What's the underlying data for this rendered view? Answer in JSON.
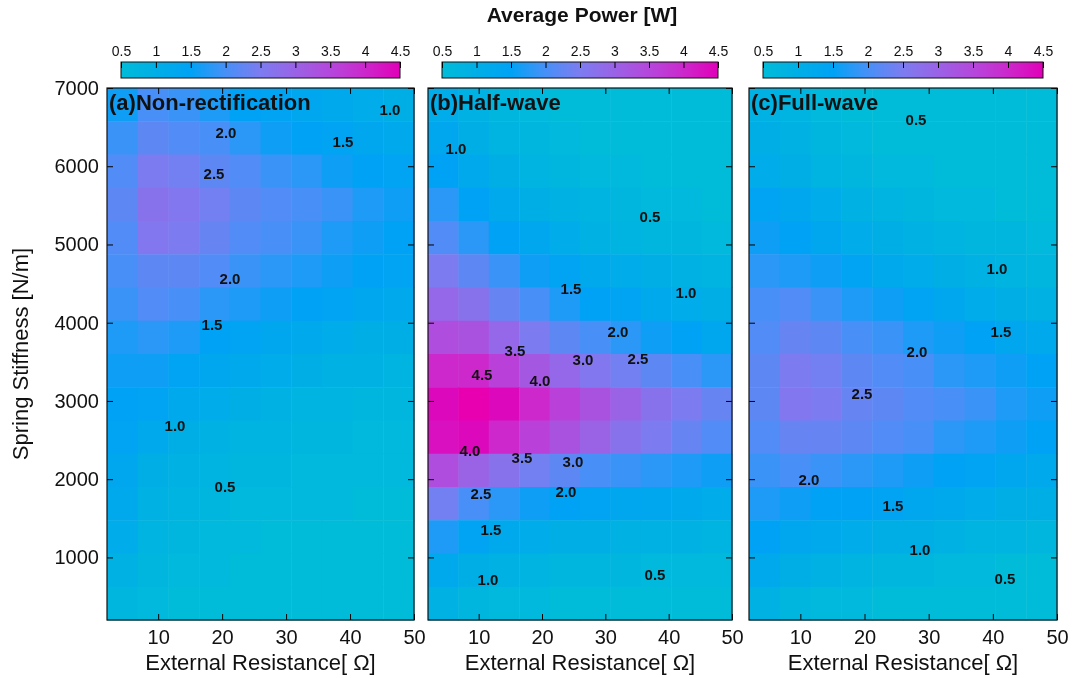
{
  "chart_data": [
    {
      "type": "heatmap",
      "title": "(a)Non-rectification",
      "xlabel": "External Resistance[   Ω]",
      "ylabel": "Spring Stiffness [N/m]",
      "clabel": "Average Power  [W]",
      "xlim": [
        2,
        50
      ],
      "xticks": [
        10,
        20,
        30,
        40,
        50
      ],
      "ylim": [
        200,
        7000
      ],
      "yticks": [
        1000,
        2000,
        3000,
        4000,
        5000,
        6000,
        7000
      ],
      "clim": [
        0.5,
        4.5
      ],
      "cticks": [
        0.5,
        1,
        1.5,
        2,
        2.5,
        3,
        3.5,
        4,
        4.5
      ],
      "cells": [
        [
          1.6,
          2.0,
          1.9,
          1.7,
          1.5,
          1.4,
          1.3,
          1.2,
          1.1,
          1.0
        ],
        [
          1.9,
          2.2,
          2.1,
          2.0,
          1.8,
          1.6,
          1.5,
          1.4,
          1.3,
          1.2
        ],
        [
          2.1,
          2.5,
          2.4,
          2.2,
          2.1,
          1.9,
          1.8,
          1.6,
          1.5,
          1.4
        ],
        [
          2.2,
          2.7,
          2.6,
          2.4,
          2.2,
          2.1,
          2.0,
          1.9,
          1.7,
          1.6
        ],
        [
          2.1,
          2.6,
          2.5,
          2.3,
          2.1,
          2.0,
          1.9,
          1.7,
          1.6,
          1.5
        ],
        [
          2.0,
          2.2,
          2.2,
          2.1,
          1.9,
          1.8,
          1.7,
          1.6,
          1.5,
          1.4
        ],
        [
          1.9,
          2.1,
          2.0,
          1.8,
          1.7,
          1.6,
          1.5,
          1.4,
          1.3,
          1.2
        ],
        [
          1.7,
          1.8,
          1.7,
          1.5,
          1.4,
          1.3,
          1.2,
          1.1,
          1.0,
          1.0
        ],
        [
          1.6,
          1.6,
          1.4,
          1.3,
          1.2,
          1.1,
          1.0,
          0.9,
          0.9,
          0.8
        ],
        [
          1.5,
          1.4,
          1.2,
          1.1,
          1.0,
          0.9,
          0.8,
          0.8,
          0.7,
          0.7
        ],
        [
          1.4,
          1.2,
          1.0,
          0.9,
          0.8,
          0.8,
          0.7,
          0.7,
          0.6,
          0.6
        ],
        [
          1.3,
          1.0,
          0.9,
          0.8,
          0.7,
          0.7,
          0.6,
          0.6,
          0.6,
          0.6
        ],
        [
          1.2,
          0.9,
          0.8,
          0.7,
          0.6,
          0.6,
          0.6,
          0.6,
          0.5,
          0.5
        ],
        [
          1.1,
          0.8,
          0.7,
          0.6,
          0.6,
          0.5,
          0.5,
          0.5,
          0.5,
          0.5
        ],
        [
          0.9,
          0.7,
          0.6,
          0.6,
          0.5,
          0.5,
          0.5,
          0.5,
          0.5,
          0.5
        ],
        [
          0.7,
          0.6,
          0.5,
          0.5,
          0.5,
          0.5,
          0.5,
          0.5,
          0.5,
          0.5
        ]
      ],
      "annotations": [
        "1.0",
        "2.0",
        "1.5",
        "2.5",
        "2.0",
        "1.5",
        "1.0",
        "0.5"
      ]
    },
    {
      "type": "heatmap",
      "title": "(b)Half-wave",
      "xlabel": "External Resistance[   Ω]",
      "tick_labels": "x",
      "xlim": [
        2,
        50
      ],
      "xticks": [
        10,
        20,
        30,
        40,
        50
      ],
      "ylim": [
        200,
        7000
      ],
      "yticks": [
        1000,
        2000,
        3000,
        4000,
        5000,
        6000,
        7000
      ],
      "clim": [
        0.5,
        4.5
      ],
      "cticks": [
        0.5,
        1,
        1.5,
        2,
        2.5,
        3,
        3.5,
        4,
        4.5
      ],
      "cells": [
        [
          1.1,
          0.9,
          0.7,
          0.6,
          0.5,
          0.5,
          0.5,
          0.5,
          0.5,
          0.5
        ],
        [
          1.3,
          1.0,
          0.8,
          0.7,
          0.6,
          0.5,
          0.5,
          0.5,
          0.5,
          0.5
        ],
        [
          1.5,
          1.2,
          1.0,
          0.8,
          0.7,
          0.6,
          0.6,
          0.5,
          0.5,
          0.5
        ],
        [
          1.8,
          1.5,
          1.2,
          1.0,
          0.9,
          0.8,
          0.7,
          0.6,
          0.6,
          0.5
        ],
        [
          2.1,
          1.8,
          1.5,
          1.3,
          1.1,
          0.9,
          0.8,
          0.7,
          0.7,
          0.6
        ],
        [
          2.5,
          2.2,
          1.9,
          1.6,
          1.4,
          1.2,
          1.1,
          1.0,
          0.9,
          0.8
        ],
        [
          2.9,
          2.7,
          2.3,
          2.0,
          1.7,
          1.5,
          1.4,
          1.2,
          1.1,
          1.0
        ],
        [
          3.4,
          3.3,
          2.9,
          2.5,
          2.2,
          2.0,
          1.8,
          1.6,
          1.5,
          1.3
        ],
        [
          4.0,
          4.0,
          3.6,
          3.2,
          2.9,
          2.6,
          2.4,
          2.2,
          2.0,
          1.8
        ],
        [
          4.4,
          4.7,
          4.4,
          4.0,
          3.6,
          3.3,
          3.0,
          2.7,
          2.5,
          2.3
        ],
        [
          4.3,
          4.4,
          4.0,
          3.6,
          3.3,
          3.0,
          2.7,
          2.5,
          2.3,
          2.1
        ],
        [
          3.4,
          3.0,
          2.7,
          2.4,
          2.2,
          2.0,
          1.9,
          1.8,
          1.7,
          1.6
        ],
        [
          2.4,
          2.0,
          1.8,
          1.6,
          1.5,
          1.4,
          1.3,
          1.3,
          1.2,
          1.1
        ],
        [
          1.7,
          1.4,
          1.2,
          1.1,
          1.0,
          1.0,
          0.9,
          0.9,
          0.9,
          0.8
        ],
        [
          1.2,
          1.0,
          0.9,
          0.8,
          0.7,
          0.7,
          0.7,
          0.6,
          0.6,
          0.6
        ],
        [
          0.9,
          0.7,
          0.6,
          0.6,
          0.5,
          0.5,
          0.5,
          0.5,
          0.5,
          0.5
        ]
      ],
      "annotations": [
        "1.0",
        "0.5",
        "1.5",
        "1.0",
        "2.0",
        "3.5",
        "3.0",
        "2.5",
        "4.5",
        "4.0",
        "4.0",
        "3.5",
        "3.0",
        "2.5",
        "2.0",
        "1.5",
        "1.0",
        "0.5"
      ]
    },
    {
      "type": "heatmap",
      "title": "(c)Full-wave",
      "xlabel": "External Resistance[   Ω]",
      "tick_labels": "x",
      "xlim": [
        2,
        50
      ],
      "xticks": [
        10,
        20,
        30,
        40,
        50
      ],
      "ylim": [
        200,
        7000
      ],
      "yticks": [
        1000,
        2000,
        3000,
        4000,
        5000,
        6000,
        7000
      ],
      "clim": [
        0.5,
        4.5
      ],
      "cticks": [
        0.5,
        1,
        1.5,
        2,
        2.5,
        3,
        3.5,
        4,
        4.5
      ],
      "cells": [
        [
          0.9,
          0.8,
          0.6,
          0.5,
          0.5,
          0.5,
          0.5,
          0.5,
          0.5,
          0.5
        ],
        [
          1.0,
          0.9,
          0.7,
          0.6,
          0.5,
          0.5,
          0.5,
          0.5,
          0.5,
          0.5
        ],
        [
          1.1,
          1.0,
          0.8,
          0.7,
          0.6,
          0.6,
          0.5,
          0.5,
          0.5,
          0.5
        ],
        [
          1.4,
          1.3,
          1.1,
          0.9,
          0.8,
          0.7,
          0.6,
          0.6,
          0.5,
          0.5
        ],
        [
          1.6,
          1.5,
          1.3,
          1.1,
          1.0,
          0.9,
          0.8,
          0.7,
          0.7,
          0.6
        ],
        [
          1.8,
          1.7,
          1.6,
          1.4,
          1.2,
          1.1,
          1.0,
          0.9,
          0.8,
          0.7
        ],
        [
          2.0,
          2.1,
          1.9,
          1.7,
          1.6,
          1.4,
          1.3,
          1.1,
          1.0,
          0.9
        ],
        [
          2.1,
          2.3,
          2.2,
          2.0,
          1.9,
          1.7,
          1.6,
          1.5,
          1.3,
          1.2
        ],
        [
          2.2,
          2.5,
          2.4,
          2.2,
          2.1,
          2.0,
          1.8,
          1.7,
          1.6,
          1.5
        ],
        [
          2.2,
          2.6,
          2.5,
          2.3,
          2.2,
          2.1,
          2.0,
          1.9,
          1.7,
          1.6
        ],
        [
          2.1,
          2.3,
          2.3,
          2.2,
          2.1,
          2.0,
          1.8,
          1.7,
          1.6,
          1.5
        ],
        [
          1.9,
          2.0,
          1.9,
          1.8,
          1.7,
          1.6,
          1.5,
          1.4,
          1.3,
          1.2
        ],
        [
          1.7,
          1.6,
          1.5,
          1.5,
          1.4,
          1.3,
          1.2,
          1.1,
          1.0,
          1.0
        ],
        [
          1.5,
          1.3,
          1.2,
          1.1,
          1.0,
          1.0,
          0.9,
          0.8,
          0.8,
          0.7
        ],
        [
          1.2,
          1.0,
          0.9,
          0.8,
          0.7,
          0.7,
          0.6,
          0.6,
          0.5,
          0.5
        ],
        [
          0.9,
          0.7,
          0.6,
          0.6,
          0.5,
          0.5,
          0.5,
          0.5,
          0.5,
          0.5
        ]
      ],
      "annotations": [
        "0.5",
        "1.0",
        "1.5",
        "2.0",
        "2.5",
        "2.0",
        "1.5",
        "1.0",
        "0.5"
      ]
    }
  ]
}
